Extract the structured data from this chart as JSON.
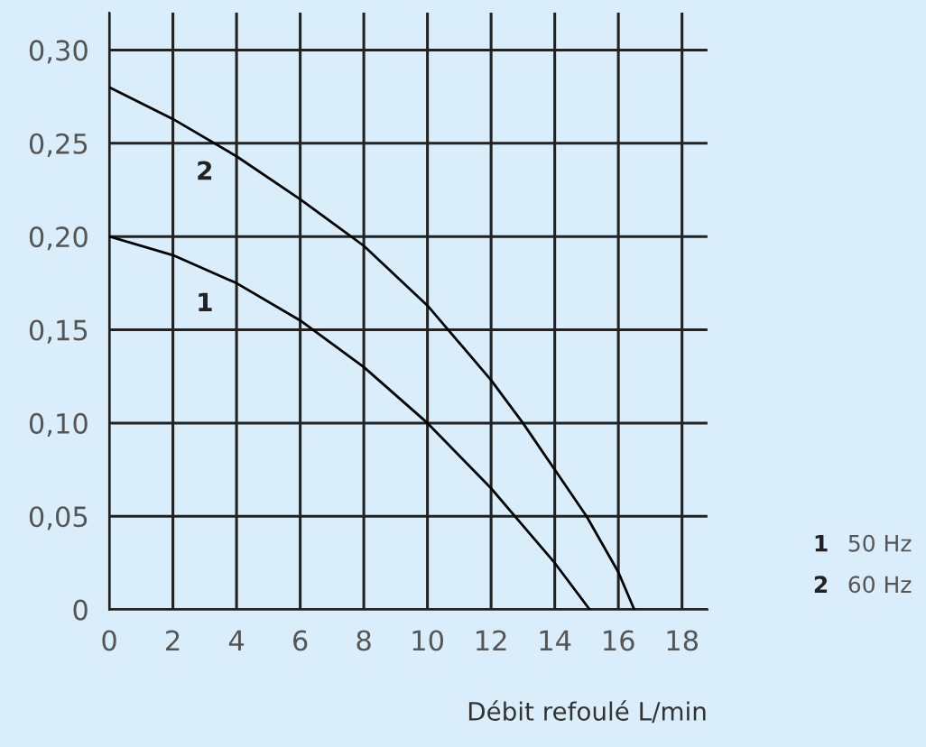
{
  "chart_data": {
    "type": "line",
    "xlabel": "Débit refoulé L/min",
    "series": [
      {
        "name": "50 Hz",
        "color": "#000000",
        "x": [
          0,
          2,
          4,
          6,
          8,
          10,
          12,
          13,
          14,
          15.1
        ],
        "values": [
          0.2,
          0.19,
          0.175,
          0.155,
          0.13,
          0.1,
          0.065,
          0.045,
          0.025,
          0
        ]
      },
      {
        "name": "60 Hz",
        "color": "#000000",
        "x": [
          0,
          2,
          4,
          6,
          8,
          10,
          12,
          13,
          14,
          15,
          16,
          16.5
        ],
        "values": [
          0.28,
          0.263,
          0.243,
          0.22,
          0.195,
          0.163,
          0.123,
          0.1,
          0.075,
          0.05,
          0.02,
          0
        ]
      }
    ],
    "annotations": [
      "1",
      "2"
    ],
    "xlim": [
      0,
      18.8
    ],
    "ylim": [
      0,
      0.32
    ],
    "xticks": [
      0,
      2,
      4,
      6,
      8,
      10,
      12,
      14,
      16,
      18
    ],
    "yticks": [
      0,
      {
        "value": 0.05,
        "label": "0,05"
      },
      {
        "value": 0.1,
        "label": "0,10"
      },
      {
        "value": 0.15,
        "label": "0,15"
      },
      {
        "value": 0.2,
        "label": "0,20"
      },
      {
        "value": 0.25,
        "label": "0,25"
      },
      {
        "value": 0.3,
        "label": "0,30"
      }
    ],
    "grid": true,
    "legend": "bottom right",
    "marker": "none",
    "line_style": "solid"
  }
}
